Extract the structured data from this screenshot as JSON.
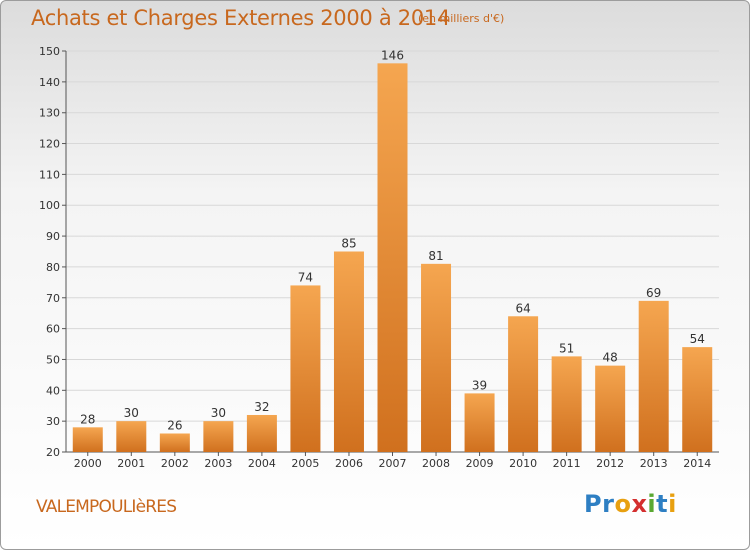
{
  "title": "Achats et Charges Externes 2000 à 2014",
  "subtitle": "(en milliers d'€)",
  "place_name": "VALEMPOULIèRES",
  "logo": {
    "letters": [
      {
        "ch": "P",
        "color": "#2e7fc3"
      },
      {
        "ch": "r",
        "color": "#2e7fc3"
      },
      {
        "ch": "o",
        "color": "#e8a010"
      },
      {
        "ch": "x",
        "color": "#d42f2f"
      },
      {
        "ch": "i",
        "color": "#5aa832"
      },
      {
        "ch": "t",
        "color": "#2e7fc3"
      },
      {
        "ch": "i",
        "color": "#e8a010"
      }
    ]
  },
  "colors": {
    "title": "#c8681e",
    "bar_top": "#f5a650",
    "bar_bottom": "#d0701e",
    "grid": "#d8d8d8",
    "axis": "#555555"
  },
  "chart_data": {
    "type": "bar",
    "categories": [
      "2000",
      "2001",
      "2002",
      "2003",
      "2004",
      "2005",
      "2006",
      "2007",
      "2008",
      "2009",
      "2010",
      "2011",
      "2012",
      "2013",
      "2014"
    ],
    "values": [
      28,
      30,
      26,
      30,
      32,
      74,
      85,
      146,
      81,
      39,
      64,
      51,
      48,
      69,
      54
    ],
    "ylim": [
      20,
      150
    ],
    "yticks": [
      20,
      30,
      40,
      50,
      60,
      70,
      80,
      90,
      100,
      110,
      120,
      130,
      140,
      150
    ],
    "grid": true,
    "legend": "none"
  }
}
